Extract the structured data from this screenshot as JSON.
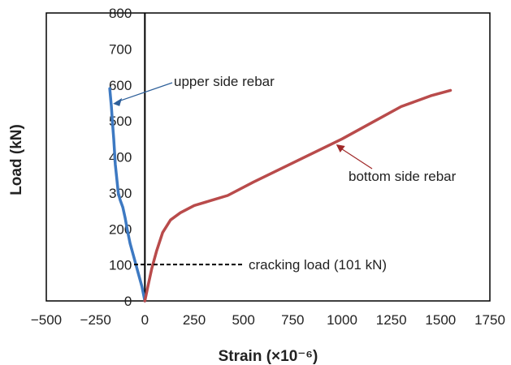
{
  "chart_data": {
    "type": "line",
    "xlabel": "Strain (×10⁻⁶)",
    "ylabel": "Load (kN)",
    "xlim": [
      -500,
      1750
    ],
    "ylim": [
      0,
      800
    ],
    "xticks": [
      -500,
      -250,
      0,
      250,
      500,
      750,
      1000,
      1250,
      1500,
      1750
    ],
    "yticks": [
      0,
      100,
      200,
      300,
      400,
      500,
      600,
      700,
      800
    ],
    "grid": false,
    "colors": {
      "upper": "#3d79c2",
      "bottom": "#b94b4b",
      "frame": "#000000"
    },
    "series": [
      {
        "key": "upper",
        "name": "upper side rebar",
        "x": [
          0,
          -15,
          -35,
          -55,
          -75,
          -90,
          -100,
          -112,
          -125,
          -135,
          -150,
          -158,
          -165,
          -170,
          -175,
          -178
        ],
        "y": [
          0,
          40,
          80,
          120,
          160,
          200,
          230,
          260,
          280,
          300,
          380,
          450,
          500,
          540,
          570,
          590
        ]
      },
      {
        "key": "bottom",
        "name": "bottom side rebar",
        "x": [
          0,
          15,
          35,
          60,
          90,
          130,
          180,
          250,
          330,
          420,
          550,
          700,
          850,
          1000,
          1150,
          1300,
          1450,
          1550
        ],
        "y": [
          0,
          40,
          90,
          140,
          190,
          225,
          245,
          265,
          278,
          293,
          330,
          370,
          410,
          450,
          495,
          540,
          570,
          585
        ]
      }
    ],
    "annotations": [
      {
        "key": "upper-label",
        "text": "upper side rebar",
        "target": [
          -178,
          548
        ]
      },
      {
        "key": "bottom-label",
        "text": "bottom side rebar",
        "target": [
          970,
          435
        ]
      },
      {
        "key": "cracking-label",
        "text": "cracking load (101 kN)",
        "y": 101
      }
    ]
  }
}
